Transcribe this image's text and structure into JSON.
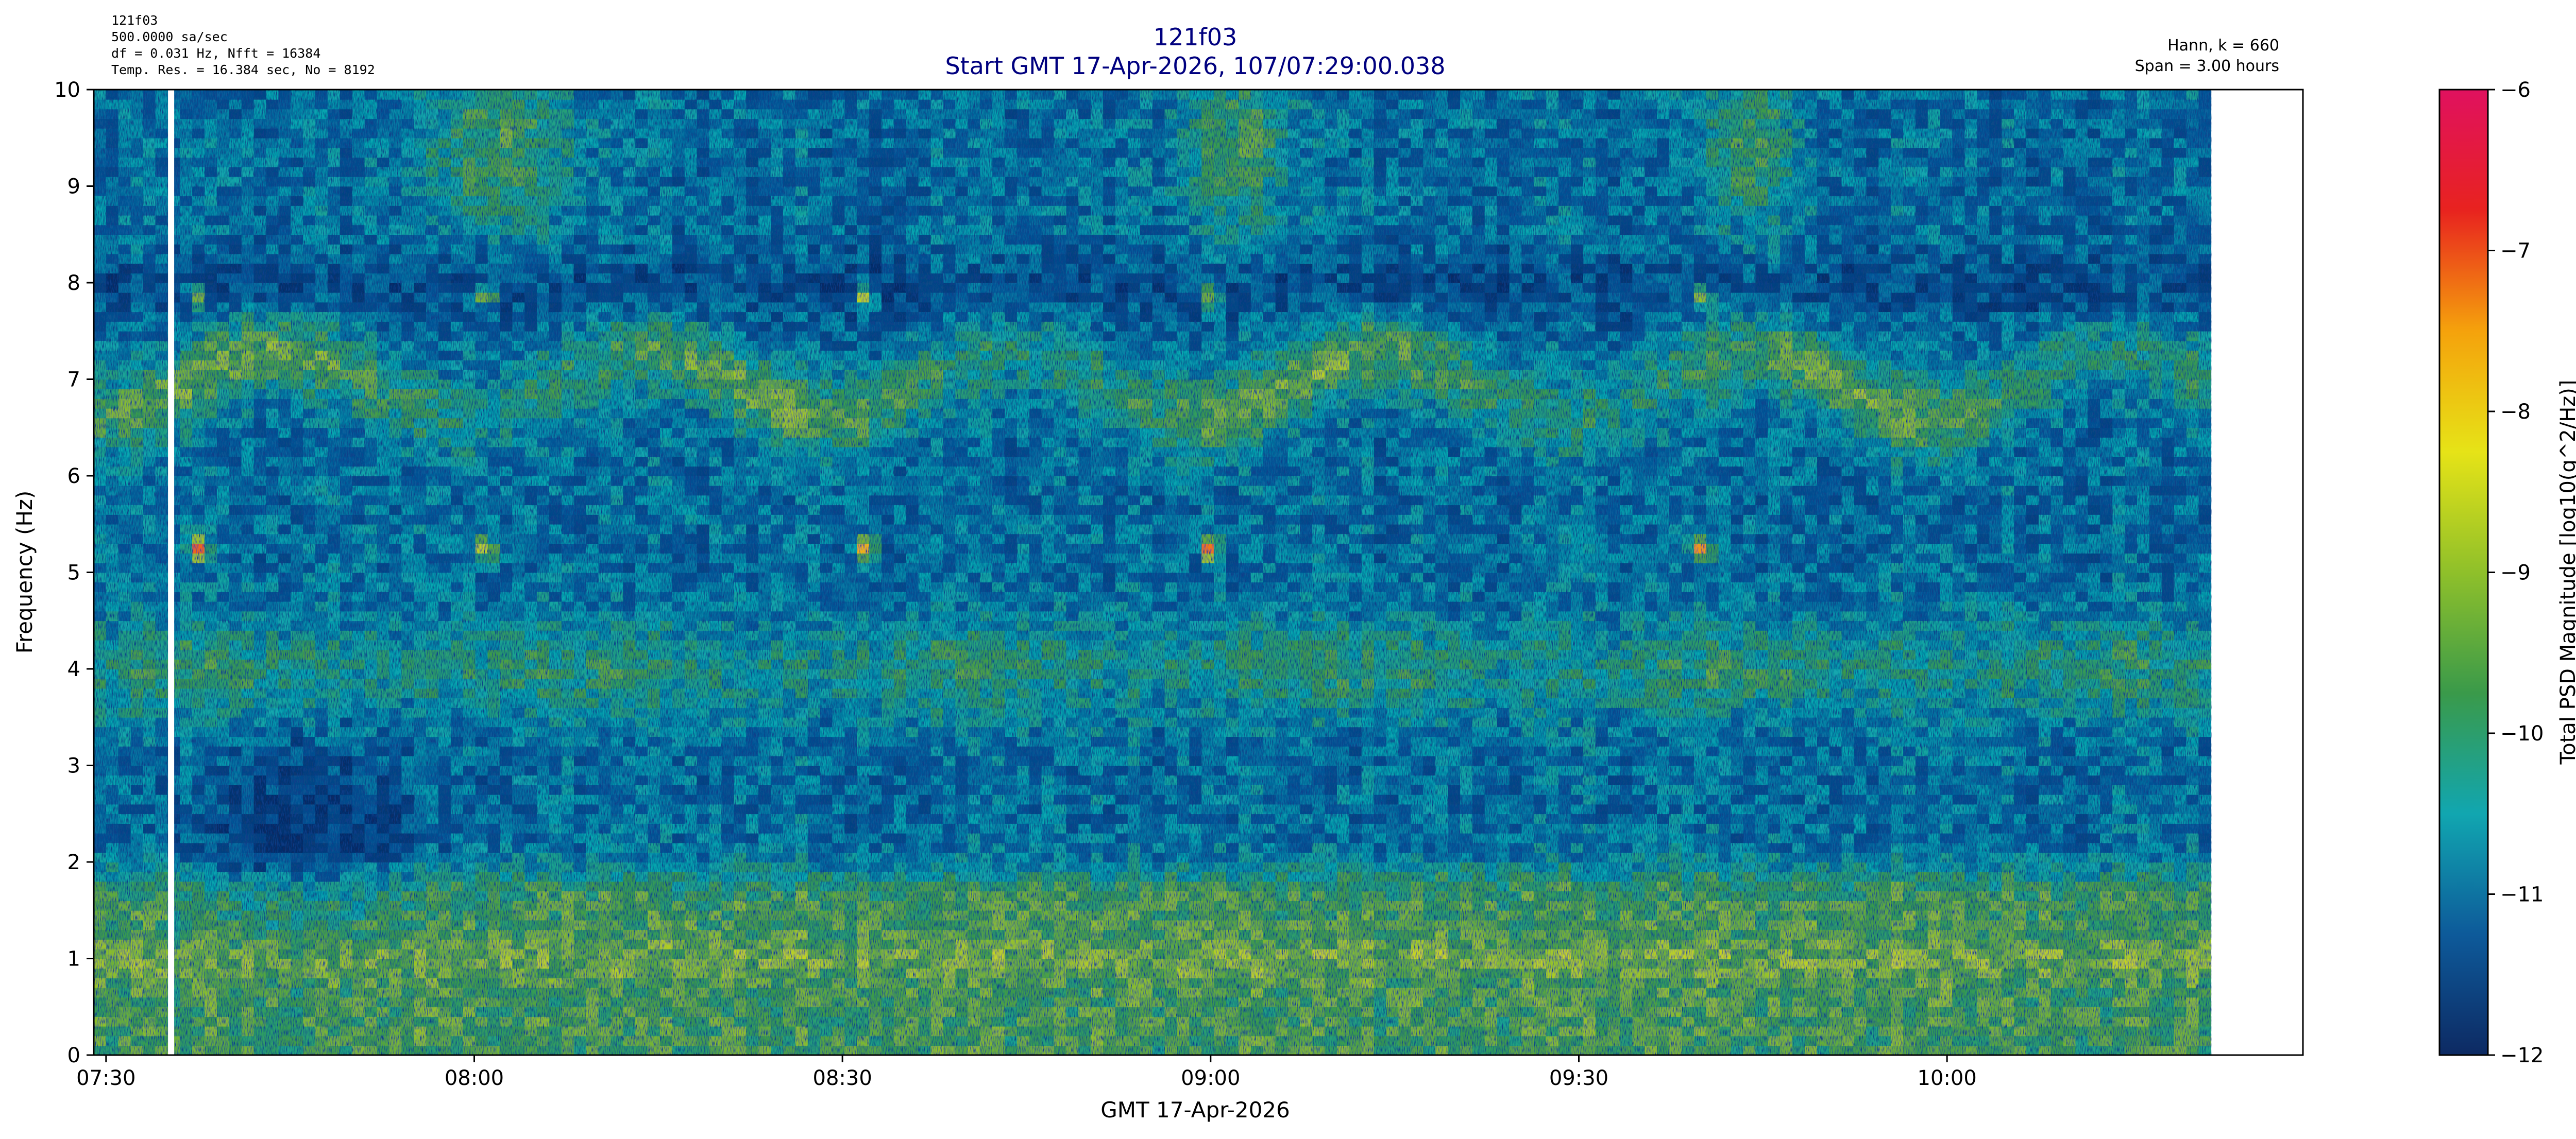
{
  "header": {
    "info_lines": [
      "121f03",
      "500.0000 sa/sec",
      "df = 0.031 Hz,  Nfft = 16384",
      "Temp. Res. = 16.384 sec, No = 8192"
    ],
    "title": "121f03",
    "subtitle": "Start GMT 17-Apr-2026, 107/07:29:00.038",
    "window_info": "Hann, k = 660",
    "span_info": "Span = 3.00 hours",
    "title_color": "#00007f"
  },
  "chart_data": {
    "type": "heatmap",
    "title": "121f03",
    "subtitle": "Start GMT 17-Apr-2026, 107/07:29:00.038",
    "xlabel": "GMT 17-Apr-2026",
    "ylabel": "Frequency (Hz)",
    "x_ticks": [
      "07:30",
      "08:00",
      "08:30",
      "09:00",
      "09:30",
      "10:00"
    ],
    "x_tick_minutes_after_0729": [
      1,
      31,
      61,
      91,
      121,
      151
    ],
    "x_data_range_minutes_after_0729": [
      0,
      172.5
    ],
    "xlim_minutes_after_0729": [
      0,
      180
    ],
    "y_ticks": [
      0,
      1,
      2,
      3,
      4,
      5,
      6,
      7,
      8,
      9,
      10
    ],
    "ylim": [
      0,
      10
    ],
    "colorbar": {
      "label": "Total PSD Magnitude [log10(g^2/Hz)]",
      "ticks": [
        -6,
        -7,
        -8,
        -9,
        -10,
        -11,
        -12
      ],
      "range": [
        -12,
        -6
      ],
      "stops": [
        "#0d2a63",
        "#0d5a9a",
        "#11a6b0",
        "#3a9a4a",
        "#8fc02a",
        "#e6e317",
        "#f5a20c",
        "#e8231f",
        "#e0115f"
      ]
    },
    "gap_at_minutes_after_0729": 6.3,
    "features": [
      {
        "label": "persistent band",
        "freq_hz": 7.0,
        "level": -9.3
      },
      {
        "label": "band",
        "freq_hz": 4.0,
        "level": -9.6
      },
      {
        "label": "low-frequency energy",
        "freq_hz": [
          0,
          1.6
        ],
        "level": -9.5
      },
      {
        "label": "periodic spikes",
        "freq_hz": [
          5.25,
          7.85
        ],
        "minutes_after_0729": [
          8.5,
          32,
          63,
          91,
          131
        ],
        "level": -7.3
      }
    ]
  }
}
